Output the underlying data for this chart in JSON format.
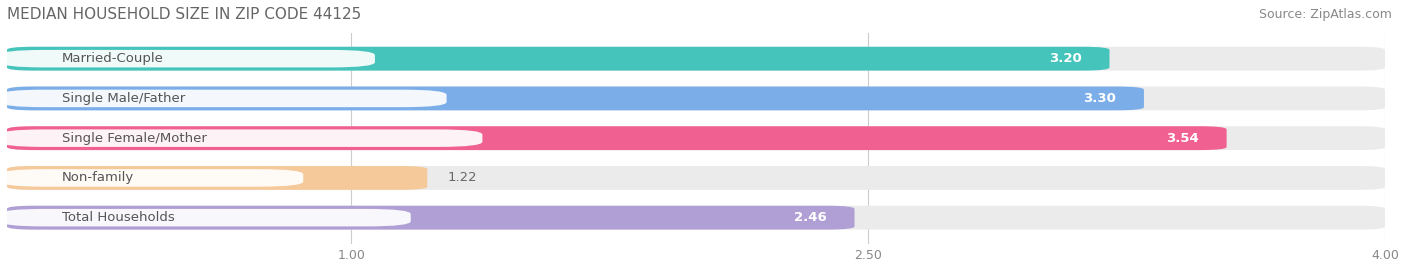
{
  "title": "MEDIAN HOUSEHOLD SIZE IN ZIP CODE 44125",
  "source": "Source: ZipAtlas.com",
  "categories": [
    "Married-Couple",
    "Single Male/Father",
    "Single Female/Mother",
    "Non-family",
    "Total Households"
  ],
  "values": [
    3.2,
    3.3,
    3.54,
    1.22,
    2.46
  ],
  "bar_colors": [
    "#45C4BC",
    "#7BAEE8",
    "#F06090",
    "#F5C99A",
    "#B09FD4"
  ],
  "label_text_colors": [
    "#555555",
    "#555555",
    "#555555",
    "#888855",
    "#555555"
  ],
  "background_color": "#ffffff",
  "bar_bg_color": "#ebebeb",
  "xlim": [
    0,
    4.0
  ],
  "xstart": 0.0,
  "xticks": [
    1.0,
    2.5,
    4.0
  ],
  "xticklabels": [
    "1.00",
    "2.50",
    "4.00"
  ],
  "title_fontsize": 11,
  "source_fontsize": 9,
  "label_fontsize": 9.5,
  "value_fontsize": 9.5
}
